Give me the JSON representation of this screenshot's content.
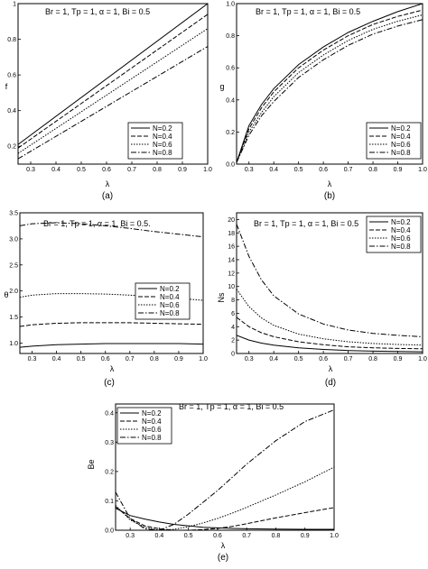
{
  "chart_data": [
    {
      "id": "a",
      "caption": "(a)",
      "type": "line",
      "xlabel": "λ",
      "ylabel": "f",
      "xlim": [
        0.25,
        1.0
      ],
      "ylim": [
        0.1,
        1.0
      ],
      "xticks": [
        "0.3",
        "0.4",
        "0.5",
        "0.6",
        "0.7",
        "0.8",
        "0.9",
        "1.0"
      ],
      "xtick_values": [
        0.3,
        0.4,
        0.5,
        0.6,
        0.7,
        0.8,
        0.9,
        1.0
      ],
      "yticks": [
        "0.2",
        "0.4",
        "0.6",
        "0.8",
        "1"
      ],
      "ytick_values": [
        0.2,
        0.4,
        0.6,
        0.8,
        1.0
      ],
      "annotation": "Br = 1, Tp = 1, α = 1, Bi = 0.5",
      "legend_position": "bottom-right",
      "series": [
        {
          "name": "N=0.2",
          "dash": "",
          "x": [
            0.25,
            1.0
          ],
          "y": [
            0.21,
            1.0
          ]
        },
        {
          "name": "N=0.4",
          "dash": "5,2",
          "x": [
            0.25,
            1.0
          ],
          "y": [
            0.19,
            0.94
          ]
        },
        {
          "name": "N=0.6",
          "dash": "1.5,1.5",
          "x": [
            0.25,
            1.0
          ],
          "y": [
            0.16,
            0.86
          ]
        },
        {
          "name": "N=0.8",
          "dash": "6,2,1.5,2",
          "x": [
            0.25,
            1.0
          ],
          "y": [
            0.13,
            0.76
          ]
        }
      ]
    },
    {
      "id": "b",
      "caption": "(b)",
      "type": "line",
      "xlabel": "λ",
      "ylabel": "g",
      "xlim": [
        0.25,
        1.0
      ],
      "ylim": [
        0.0,
        1.0
      ],
      "xticks": [
        "0.3",
        "0.4",
        "0.5",
        "0.6",
        "0.7",
        "0.8",
        "0.9",
        "1.0"
      ],
      "xtick_values": [
        0.3,
        0.4,
        0.5,
        0.6,
        0.7,
        0.8,
        0.9,
        1.0
      ],
      "yticks": [
        "0.0",
        "0.2",
        "0.4",
        "0.6",
        "0.8",
        "1.0"
      ],
      "ytick_values": [
        0.0,
        0.2,
        0.4,
        0.6,
        0.8,
        1.0
      ],
      "annotation": "Br = 1, Tp = 1, α = 1, Bi = 0.5",
      "legend_position": "bottom-right",
      "series": [
        {
          "name": "N=0.2",
          "dash": "",
          "x": [
            0.25,
            0.3,
            0.35,
            0.4,
            0.5,
            0.6,
            0.7,
            0.8,
            0.9,
            1.0
          ],
          "y": [
            0.01,
            0.24,
            0.37,
            0.47,
            0.62,
            0.73,
            0.82,
            0.89,
            0.95,
            1.0
          ]
        },
        {
          "name": "N=0.4",
          "dash": "5,2",
          "x": [
            0.25,
            0.3,
            0.35,
            0.4,
            0.5,
            0.6,
            0.7,
            0.8,
            0.9,
            1.0
          ],
          "y": [
            0.01,
            0.22,
            0.35,
            0.45,
            0.6,
            0.71,
            0.8,
            0.87,
            0.92,
            0.96
          ]
        },
        {
          "name": "N=0.6",
          "dash": "1.5,1.5",
          "x": [
            0.25,
            0.3,
            0.35,
            0.4,
            0.5,
            0.6,
            0.7,
            0.8,
            0.9,
            1.0
          ],
          "y": [
            0.01,
            0.2,
            0.32,
            0.42,
            0.57,
            0.68,
            0.77,
            0.84,
            0.89,
            0.93
          ]
        },
        {
          "name": "N=0.8",
          "dash": "6,2,1.5,2",
          "x": [
            0.25,
            0.3,
            0.35,
            0.4,
            0.5,
            0.6,
            0.7,
            0.8,
            0.9,
            1.0
          ],
          "y": [
            0.01,
            0.18,
            0.3,
            0.39,
            0.54,
            0.65,
            0.74,
            0.81,
            0.86,
            0.9
          ]
        }
      ]
    },
    {
      "id": "c",
      "caption": "(c)",
      "type": "line",
      "xlabel": "λ",
      "ylabel": "θ",
      "xlim": [
        0.25,
        1.0
      ],
      "ylim": [
        0.8,
        3.5
      ],
      "xticks": [
        "0.3",
        "0.4",
        "0.5",
        "0.6",
        "0.7",
        "0.8",
        "0.9",
        "1.0"
      ],
      "xtick_values": [
        0.3,
        0.4,
        0.5,
        0.6,
        0.7,
        0.8,
        0.9,
        1.0
      ],
      "yticks": [
        "1.0",
        "1.5",
        "2.0",
        "2.5",
        "3.0",
        "3.5"
      ],
      "ytick_values": [
        1.0,
        1.5,
        2.0,
        2.5,
        3.0,
        3.5
      ],
      "annotation": "Br = 1, Tp = 1, α = 1, Bi = 0.5.",
      "legend_position": "center-right",
      "series": [
        {
          "name": "N=0.2",
          "dash": "",
          "x": [
            0.25,
            0.3,
            0.4,
            0.5,
            0.6,
            0.7,
            0.8,
            0.9,
            1.0
          ],
          "y": [
            0.92,
            0.94,
            0.97,
            0.98,
            0.99,
            0.99,
            0.99,
            0.99,
            0.98
          ]
        },
        {
          "name": "N=0.4",
          "dash": "5,2",
          "x": [
            0.25,
            0.3,
            0.4,
            0.5,
            0.6,
            0.7,
            0.8,
            0.9,
            1.0
          ],
          "y": [
            1.32,
            1.35,
            1.38,
            1.39,
            1.39,
            1.39,
            1.38,
            1.37,
            1.36
          ]
        },
        {
          "name": "N=0.6",
          "dash": "1.5,1.5",
          "x": [
            0.25,
            0.3,
            0.4,
            0.5,
            0.6,
            0.7,
            0.8,
            0.9,
            1.0
          ],
          "y": [
            1.88,
            1.92,
            1.95,
            1.95,
            1.94,
            1.92,
            1.89,
            1.86,
            1.82
          ]
        },
        {
          "name": "N=0.8",
          "dash": "6,2,1.5,2",
          "x": [
            0.25,
            0.3,
            0.4,
            0.5,
            0.6,
            0.7,
            0.8,
            0.9,
            1.0
          ],
          "y": [
            3.25,
            3.29,
            3.31,
            3.29,
            3.25,
            3.2,
            3.14,
            3.09,
            3.04
          ]
        }
      ]
    },
    {
      "id": "d",
      "caption": "(d)",
      "type": "line",
      "xlabel": "λ",
      "ylabel": "Ns",
      "xlim": [
        0.25,
        1.0
      ],
      "ylim": [
        0,
        21
      ],
      "xticks": [
        "0.3",
        "0.4",
        "0.5",
        "0.6",
        "0.7",
        "0.8",
        "0.9",
        "1.0"
      ],
      "xtick_values": [
        0.3,
        0.4,
        0.5,
        0.6,
        0.7,
        0.8,
        0.9,
        1.0
      ],
      "yticks": [
        "0",
        "2",
        "4",
        "6",
        "8",
        "10",
        "12",
        "14",
        "16",
        "18",
        "20"
      ],
      "ytick_values": [
        0,
        2,
        4,
        6,
        8,
        10,
        12,
        14,
        16,
        18,
        20
      ],
      "annotation": "Br = 1, Tp = 1, α = 1, Bi = 0.5",
      "legend_position": "top-right",
      "series": [
        {
          "name": "N=0.2",
          "dash": "",
          "x": [
            0.25,
            0.3,
            0.35,
            0.4,
            0.5,
            0.6,
            0.7,
            0.8,
            0.9,
            1.0
          ],
          "y": [
            2.7,
            2.0,
            1.55,
            1.25,
            0.85,
            0.6,
            0.45,
            0.35,
            0.3,
            0.25
          ]
        },
        {
          "name": "N=0.4",
          "dash": "5,2",
          "x": [
            0.25,
            0.3,
            0.35,
            0.4,
            0.5,
            0.6,
            0.7,
            0.8,
            0.9,
            1.0
          ],
          "y": [
            5.4,
            4.0,
            3.1,
            2.5,
            1.75,
            1.3,
            1.0,
            0.85,
            0.75,
            0.7
          ]
        },
        {
          "name": "N=0.6",
          "dash": "1.5,1.5",
          "x": [
            0.25,
            0.3,
            0.35,
            0.4,
            0.5,
            0.6,
            0.7,
            0.8,
            0.9,
            1.0
          ],
          "y": [
            9.6,
            7.0,
            5.3,
            4.2,
            2.9,
            2.2,
            1.75,
            1.5,
            1.35,
            1.25
          ]
        },
        {
          "name": "N=0.8",
          "dash": "6,2,1.5,2",
          "x": [
            0.25,
            0.3,
            0.35,
            0.4,
            0.5,
            0.6,
            0.7,
            0.8,
            0.9,
            1.0
          ],
          "y": [
            19.3,
            14.5,
            11.0,
            8.6,
            5.9,
            4.4,
            3.5,
            3.0,
            2.7,
            2.5
          ]
        }
      ]
    },
    {
      "id": "e",
      "caption": "(e)",
      "type": "line",
      "xlabel": "λ",
      "ylabel": "Be",
      "xlim": [
        0.25,
        1.0
      ],
      "ylim": [
        0.0,
        0.43
      ],
      "xticks": [
        "0.3",
        "0.4",
        "0.5",
        "0.6",
        "0.7",
        "0.8",
        "0.9",
        "1.0"
      ],
      "xtick_values": [
        0.3,
        0.4,
        0.5,
        0.6,
        0.7,
        0.8,
        0.9,
        1.0
      ],
      "yticks": [
        "0.0",
        "0.1",
        "0.2",
        "0.3",
        "0.4"
      ],
      "ytick_values": [
        0.0,
        0.1,
        0.2,
        0.3,
        0.4
      ],
      "annotation": "Br = 1, Tp = 1, α = 1, Bi = 0.5",
      "legend_position": "top-left",
      "series": [
        {
          "name": "N=0.2",
          "dash": "",
          "x": [
            0.25,
            0.3,
            0.35,
            0.4,
            0.45,
            0.5,
            0.55,
            0.6,
            0.65,
            0.7,
            0.8,
            0.9,
            1.0
          ],
          "y": [
            0.075,
            0.05,
            0.038,
            0.028,
            0.02,
            0.015,
            0.01,
            0.008,
            0.006,
            0.005,
            0.004,
            0.003,
            0.003
          ]
        },
        {
          "name": "N=0.4",
          "dash": "5,2",
          "x": [
            0.25,
            0.3,
            0.35,
            0.4,
            0.45,
            0.5,
            0.55,
            0.6,
            0.65,
            0.7,
            0.8,
            0.9,
            1.0
          ],
          "y": [
            0.08,
            0.04,
            0.015,
            0.005,
            0.0,
            0.0,
            0.002,
            0.006,
            0.013,
            0.022,
            0.042,
            0.06,
            0.077
          ]
        },
        {
          "name": "N=0.6",
          "dash": "1.5,1.5",
          "x": [
            0.25,
            0.3,
            0.35,
            0.4,
            0.45,
            0.5,
            0.55,
            0.6,
            0.65,
            0.7,
            0.8,
            0.9,
            1.0
          ],
          "y": [
            0.085,
            0.035,
            0.01,
            0.0,
            0.003,
            0.012,
            0.025,
            0.04,
            0.058,
            0.078,
            0.12,
            0.165,
            0.215
          ]
        },
        {
          "name": "N=0.8",
          "dash": "6,2,1.5,2",
          "x": [
            0.25,
            0.3,
            0.35,
            0.4,
            0.45,
            0.5,
            0.55,
            0.6,
            0.65,
            0.7,
            0.8,
            0.9,
            1.0
          ],
          "y": [
            0.13,
            0.04,
            0.005,
            0.0,
            0.02,
            0.055,
            0.095,
            0.135,
            0.18,
            0.225,
            0.305,
            0.37,
            0.41
          ]
        }
      ]
    }
  ]
}
